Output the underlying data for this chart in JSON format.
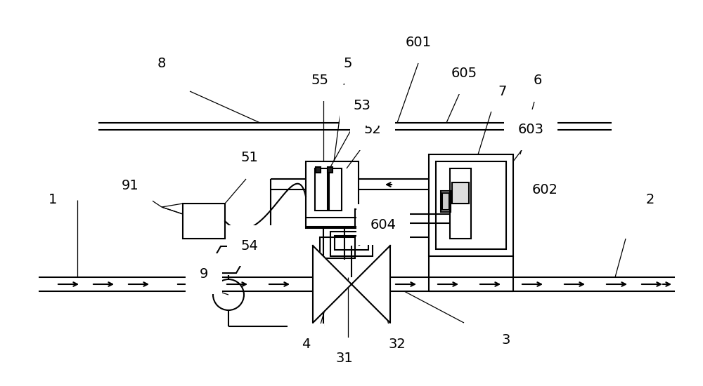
{
  "bg_color": "#ffffff",
  "line_color": "#000000",
  "fig_width": 10.0,
  "fig_height": 5.5,
  "dpi": 100
}
